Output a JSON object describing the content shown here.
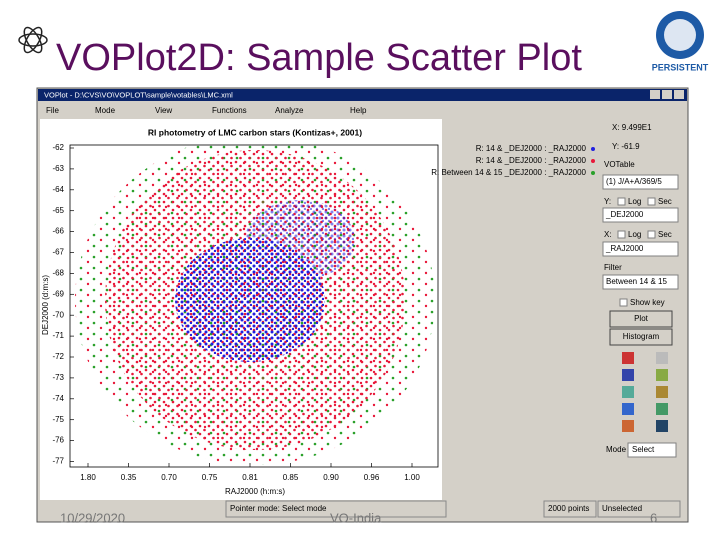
{
  "slide": {
    "title": "VOPlot2D: Sample Scatter Plot",
    "logo": "PERSISTENT",
    "footer": {
      "date": "10/29/2020",
      "center": "VO-India",
      "page": "6"
    }
  },
  "window": {
    "title": "VOPlot - D:\\CVS\\VO\\VOPLOT\\sample\\votables\\LMC.xml",
    "menu": [
      "File",
      "Mode",
      "View",
      "Functions",
      "Analyze",
      "Help"
    ],
    "plot": {
      "title": "RI photometry of LMC carbon stars (Kontizas+, 2001)",
      "y_label": "DEJ2000 (d:m:s)",
      "x_label": "RAJ2000 (h:m:s)",
      "y_ticks": [
        "-62",
        "-63",
        "-64",
        "-65",
        "-66",
        "-67",
        "-68",
        "-69",
        "-70",
        "-71",
        "-72",
        "-73",
        "-74",
        "-75",
        "-76",
        "-77"
      ],
      "x_ticks": [
        "1.80",
        "0.35",
        "0.70",
        "0.75",
        "0.81",
        "0.85",
        "0.90",
        "0.96",
        "1.00"
      ],
      "legend": [
        "R: 14 & _DEJ2000 : _RAJ2000",
        "R: 14 & _DEJ2000 : _RAJ2000",
        "R: Between 14 & 15 _DEJ2000 : _RAJ2000"
      ]
    },
    "panel": {
      "x_readout": "X: 9.499E1",
      "y_readout": "Y: -61.9",
      "votable": "VOTable",
      "votable_select": "(1) J/A+A/369/5",
      "y_axis": "Y:",
      "log": "Log",
      "sec": "Sec",
      "y_select": "_DEJ2000",
      "x_axis": "X:",
      "x_select": "_RAJ2000",
      "filter": "Filter",
      "filter_select": "Between 14 & 15",
      "show_key": "Show key",
      "plot_button": "Plot",
      "histogram_button": "Histogram",
      "mode": "Mode",
      "mode_select": "Select"
    },
    "status": [
      "Pointer mode: Select mode",
      "2000 points",
      "Unselected"
    ]
  }
}
